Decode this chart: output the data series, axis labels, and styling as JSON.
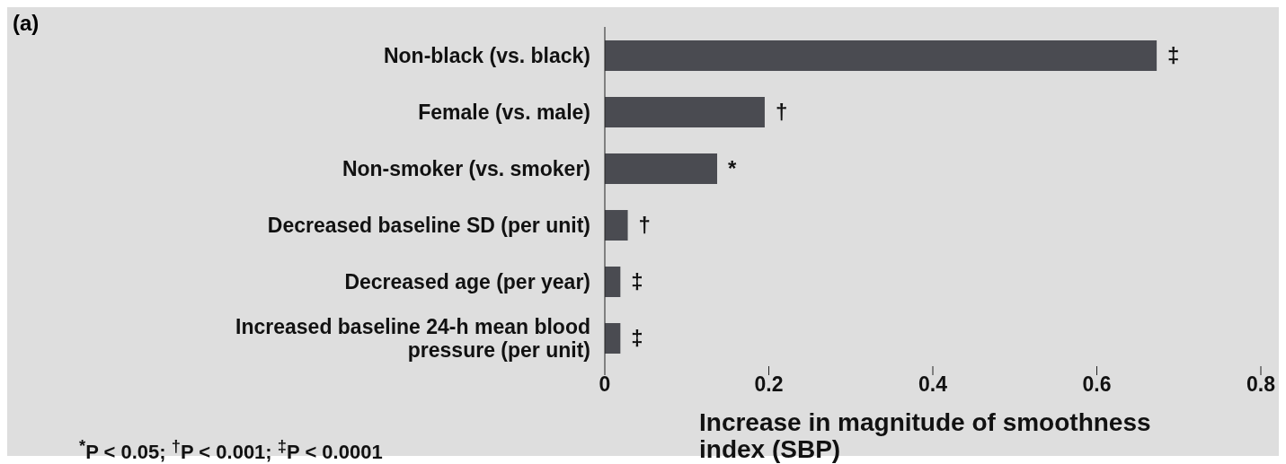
{
  "chart_data": {
    "type": "bar",
    "orientation": "horizontal",
    "title": "(a)",
    "xlabel": "Increase in magnitude of smoothness index (SBP)",
    "categories": [
      "Non-black (vs. black)",
      "Female (vs. male)",
      "Non-smoker (vs. smoker)",
      "Decreased baseline SD (per unit)",
      "Decreased age (per year)",
      "Increased baseline 24-h mean blood pressure (per unit)"
    ],
    "values": [
      0.673,
      0.195,
      0.137,
      0.028,
      0.019,
      0.019
    ],
    "color": "#4a4b51",
    "xlim": [
      0,
      0.8
    ],
    "xticks": [
      0,
      0.2,
      0.4,
      0.6,
      0.8
    ],
    "grid": false,
    "annotations": [
      {
        "text": "‡",
        "x": 0.673,
        "y": "Non-black (vs. black)"
      },
      {
        "text": "†",
        "x": 0.195,
        "y": "Female (vs. male)"
      },
      {
        "text": "*",
        "x": 0.137,
        "y": "Non-smoker (vs. smoker)"
      },
      {
        "text": "†",
        "x": 0.028,
        "y": "Decreased baseline SD (per unit)"
      },
      {
        "text": "‡",
        "x": 0.019,
        "y": "Decreased age (per year)"
      },
      {
        "text": "‡",
        "x": 0.019,
        "y": "Increased baseline 24-h mean blood pressure (per unit)"
      },
      "$^{*}$P < 0.05; $^{†}$P < 0.001; $^{‡}$P < 0.0001"
    ]
  }
}
